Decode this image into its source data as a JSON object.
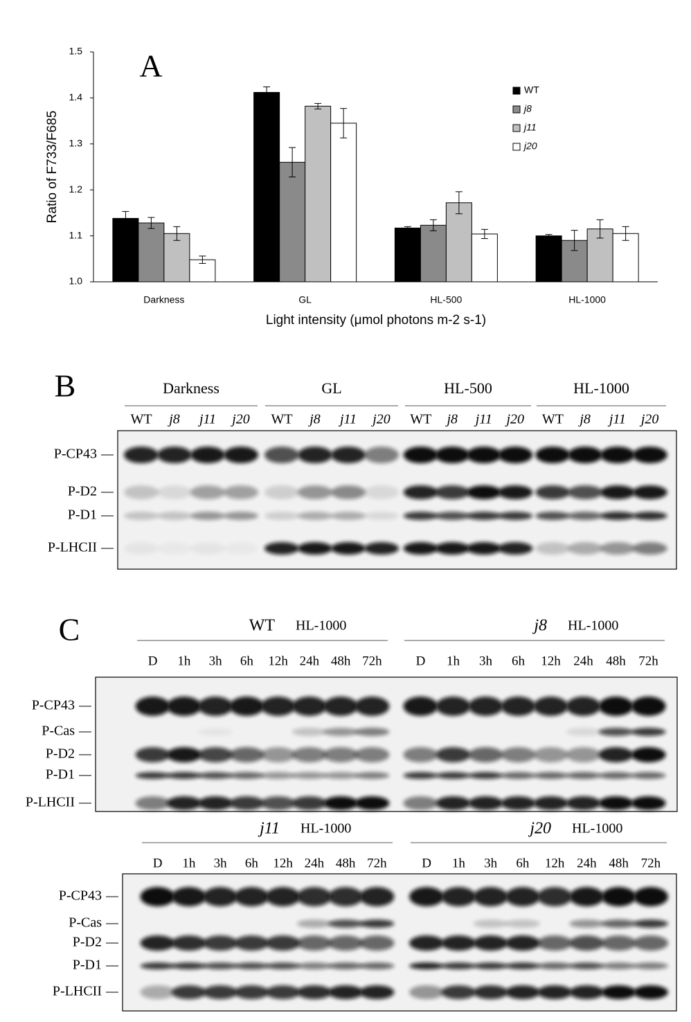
{
  "chart_data": {
    "type": "bar",
    "panel_label": "A",
    "ylabel": "Ratio of F733/F685",
    "xlabel": "Light intensity (μmol photons m-2 s-1)",
    "categories": [
      "Darkness",
      "GL",
      "HL-500",
      "HL-1000"
    ],
    "series": [
      {
        "name": "WT",
        "color": "#000000",
        "values": [
          1.138,
          1.412,
          1.117,
          1.1
        ],
        "errors": [
          0.015,
          0.012,
          0.003,
          0.003
        ]
      },
      {
        "name": "j8",
        "color": "#8a8a8a",
        "values": [
          1.128,
          1.26,
          1.123,
          1.09
        ],
        "errors": [
          0.012,
          0.032,
          0.012,
          0.022
        ]
      },
      {
        "name": "j11",
        "color": "#c0c0c0",
        "values": [
          1.105,
          1.382,
          1.172,
          1.115
        ],
        "errors": [
          0.015,
          0.006,
          0.024,
          0.02
        ]
      },
      {
        "name": "j20",
        "color": "#ffffff",
        "values": [
          1.048,
          1.345,
          1.104,
          1.105
        ],
        "errors": [
          0.008,
          0.032,
          0.01,
          0.015
        ]
      }
    ],
    "ylim": [
      1,
      1.5
    ],
    "yticks": [
      {
        "value": 1,
        "label": "1.0"
      },
      1.1,
      1.2,
      1.3,
      1.4,
      1.5
    ],
    "grid": false,
    "legend": "upper right"
  },
  "panel_b": {
    "label": "B",
    "groups": [
      {
        "name": "Darkness",
        "lanes": [
          "WT",
          "j8",
          "j11",
          "j20"
        ]
      },
      {
        "name": "GL",
        "lanes": [
          "WT",
          "j8",
          "j11",
          "j20"
        ]
      },
      {
        "name": "HL-500",
        "lanes": [
          "WT",
          "j8",
          "j11",
          "j20"
        ]
      },
      {
        "name": "HL-1000",
        "lanes": [
          "WT",
          "j8",
          "j11",
          "j20"
        ]
      }
    ],
    "rows": [
      "P-CP43",
      "P-D2",
      "P-D1",
      "P-LHCII"
    ]
  },
  "panel_c": {
    "label": "C",
    "blots": [
      {
        "groups": [
          {
            "genotype": "WT",
            "light": "HL-1000",
            "lanes": [
              "D",
              "1h",
              "3h",
              "6h",
              "12h",
              "24h",
              "48h",
              "72h"
            ]
          },
          {
            "genotype": "j8",
            "light": "HL-1000",
            "lanes": [
              "D",
              "1h",
              "3h",
              "6h",
              "12h",
              "24h",
              "48h",
              "72h"
            ]
          }
        ],
        "rows": [
          "P-CP43",
          "P-Cas",
          "P-D2",
          "P-D1",
          "P-LHCII"
        ]
      },
      {
        "groups": [
          {
            "genotype": "j11",
            "light": "HL-1000",
            "lanes": [
              "D",
              "1h",
              "3h",
              "6h",
              "12h",
              "24h",
              "48h",
              "72h"
            ]
          },
          {
            "genotype": "j20",
            "light": "HL-1000",
            "lanes": [
              "D",
              "1h",
              "3h",
              "6h",
              "12h",
              "24h",
              "48h",
              "72h"
            ]
          }
        ],
        "rows": [
          "P-CP43",
          "P-Cas",
          "P-D2",
          "P-D1",
          "P-LHCII"
        ]
      }
    ]
  }
}
